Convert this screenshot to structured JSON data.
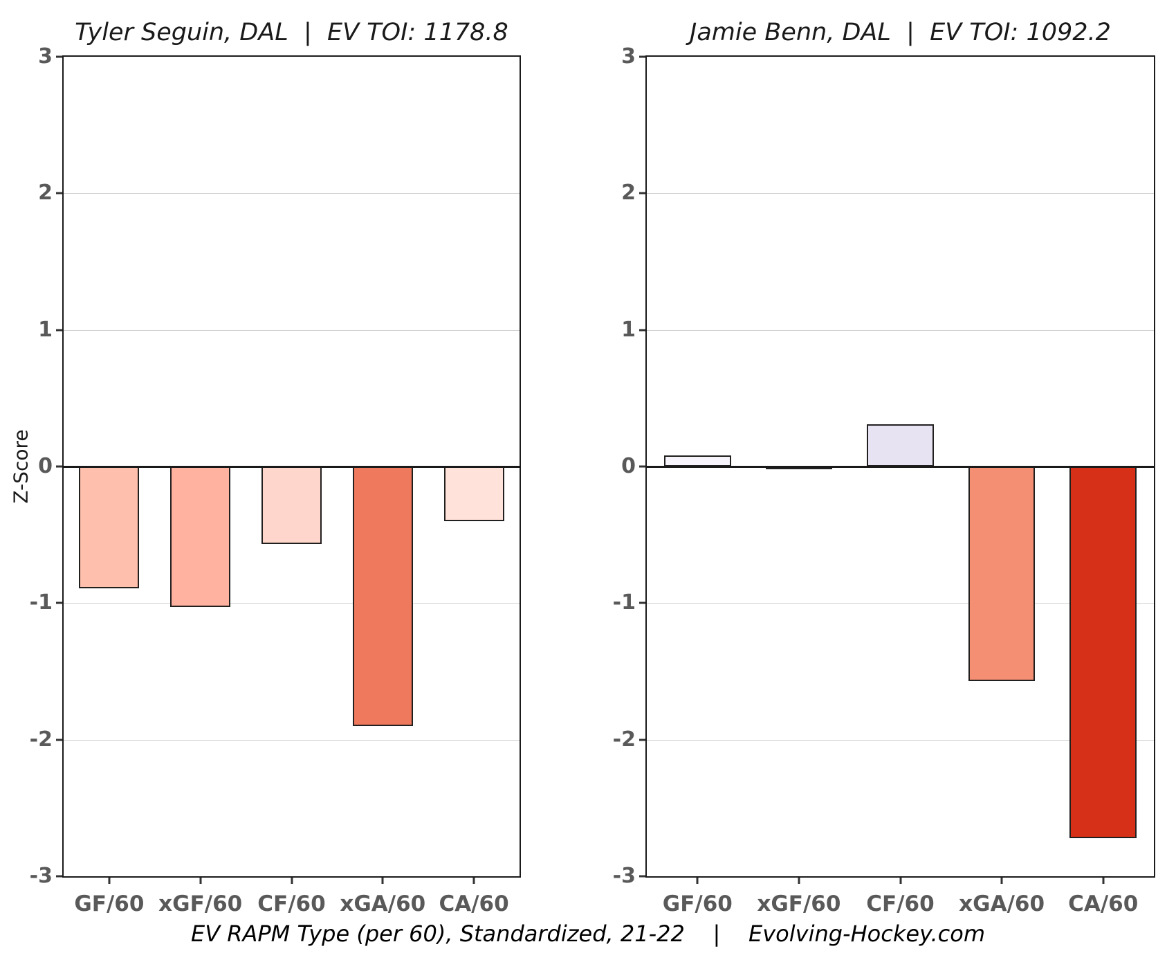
{
  "figure": {
    "background": "#ffffff",
    "footer_text": "EV RAPM Type (per 60), Standardized, 21-22    |    Evolving-Hockey.com"
  },
  "colors": {
    "plot_border": "#1a1a1a",
    "gridline": "#d2d2d2",
    "zero_line": "#1a1a1a",
    "bar_outline": "#221f1f",
    "tick_label": "#595959",
    "title_text": "#1a1a1a"
  },
  "chart_data": [
    {
      "type": "bar",
      "title": "Tyler Seguin, DAL  |  EV TOI: 1178.8",
      "player": "Tyler Seguin",
      "team": "DAL",
      "ev_toi": 1178.8,
      "categories": [
        "GF/60",
        "xGF/60",
        "CF/60",
        "xGA/60",
        "CA/60"
      ],
      "values": [
        -0.89,
        -1.03,
        -0.57,
        -1.9,
        -0.4
      ],
      "bar_colors": [
        "#FFBFAD",
        "#FFB2A0",
        "#FFD6CB",
        "#EE795D",
        "#FFE3DA"
      ],
      "xlabel": "",
      "ylabel": "Z-Score",
      "ylim": [
        -3,
        3
      ],
      "yticks": [
        3,
        2,
        1,
        0,
        -1,
        -2,
        -3
      ],
      "grid": true,
      "legend": "none"
    },
    {
      "type": "bar",
      "title": "Jamie Benn, DAL  |  EV TOI: 1092.2",
      "player": "Jamie Benn",
      "team": "DAL",
      "ev_toi": 1092.2,
      "categories": [
        "GF/60",
        "xGF/60",
        "CF/60",
        "xGA/60",
        "CA/60"
      ],
      "values": [
        0.08,
        -0.02,
        0.31,
        -1.57,
        -2.72
      ],
      "bar_colors": [
        "#F7F4FB",
        "#FDFDFE",
        "#E8E3F3",
        "#F48F74",
        "#D63118"
      ],
      "xlabel": "",
      "ylabel": "",
      "ylim": [
        -3,
        3
      ],
      "yticks": [
        3,
        2,
        1,
        0,
        -1,
        -2,
        -3
      ],
      "grid": true,
      "legend": "none"
    }
  ]
}
